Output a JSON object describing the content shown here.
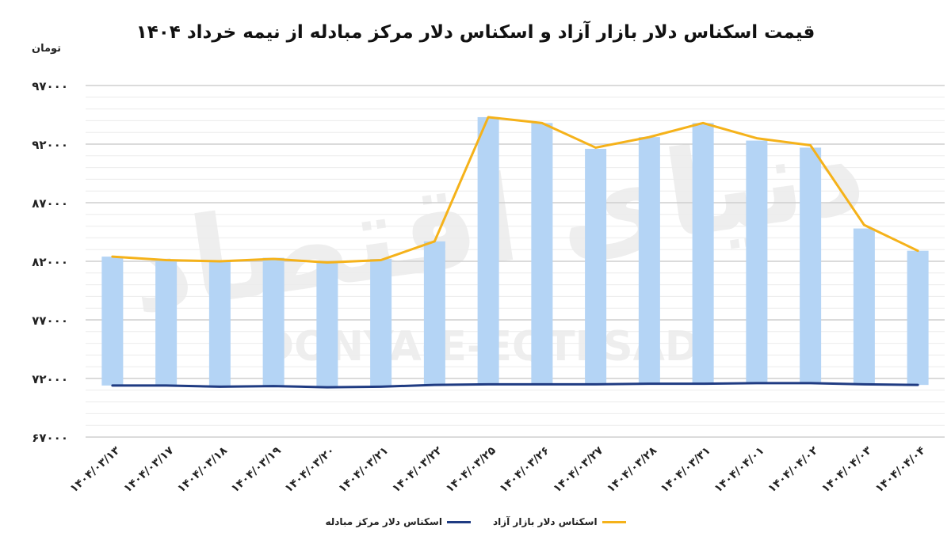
{
  "chart_data": {
    "type": "bar",
    "title": "قیمت اسکناس دلار بازار آزاد و اسکناس دلار مرکز مبادله از نیمه خرداد ۱۴۰۴",
    "ylabel": "تومان",
    "ylim": [
      67000,
      97000
    ],
    "yticks": [
      67000,
      72000,
      77000,
      82000,
      87000,
      92000,
      97000
    ],
    "ytick_labels": [
      "۶۷۰۰۰",
      "۷۲۰۰۰",
      "۷۷۰۰۰",
      "۸۲۰۰۰",
      "۸۷۰۰۰",
      "۹۲۰۰۰",
      "۹۷۰۰۰"
    ],
    "categories": [
      "۱۴۰۴/۰۳/۱۳",
      "۱۴۰۴/۰۳/۱۷",
      "۱۴۰۴/۰۳/۱۸",
      "۱۴۰۴/۰۳/۱۹",
      "۱۴۰۴/۰۳/۲۰",
      "۱۴۰۴/۰۳/۲۱",
      "۱۴۰۴/۰۳/۲۲",
      "۱۴۰۴/۰۳/۲۵",
      "۱۴۰۴/۰۳/۲۶",
      "۱۴۰۴/۰۳/۲۷",
      "۱۴۰۴/۰۳/۲۸",
      "۱۴۰۴/۰۳/۳۱",
      "۱۴۰۴/۰۴/۰۱",
      "۱۴۰۴/۰۴/۰۲",
      "۱۴۰۴/۰۴/۰۳",
      "۱۴۰۴/۰۴/۰۴"
    ],
    "bars": [
      82400,
      82100,
      82000,
      82300,
      81900,
      82200,
      83700,
      94300,
      93800,
      91600,
      92600,
      93800,
      92300,
      91700,
      84800,
      82900
    ],
    "series": [
      {
        "name": "اسکناس دلار بازار آزاد",
        "type": "line",
        "values": [
          82400,
          82100,
          82000,
          82200,
          81900,
          82100,
          83700,
          94300,
          93800,
          91700,
          92600,
          93800,
          92500,
          91900,
          85100,
          82900
        ]
      },
      {
        "name": "اسکناس دلار مرکز مبادله",
        "type": "line",
        "values": [
          71400,
          71400,
          71300,
          71350,
          71250,
          71300,
          71450,
          71500,
          71500,
          71500,
          71550,
          71550,
          71600,
          71600,
          71500,
          71450
        ]
      }
    ],
    "grid": true,
    "legend": "bottom"
  },
  "colors": {
    "bar": "#b4d4f5",
    "free_market": "#f5b21a",
    "exchange_center": "#1f3b82",
    "grid": "#d8d8d8",
    "watermark": "#eeeeee"
  },
  "watermark": {
    "latin": "DONYA-E-EQTESAD",
    "farsi": "دنیای اقتصاد"
  }
}
